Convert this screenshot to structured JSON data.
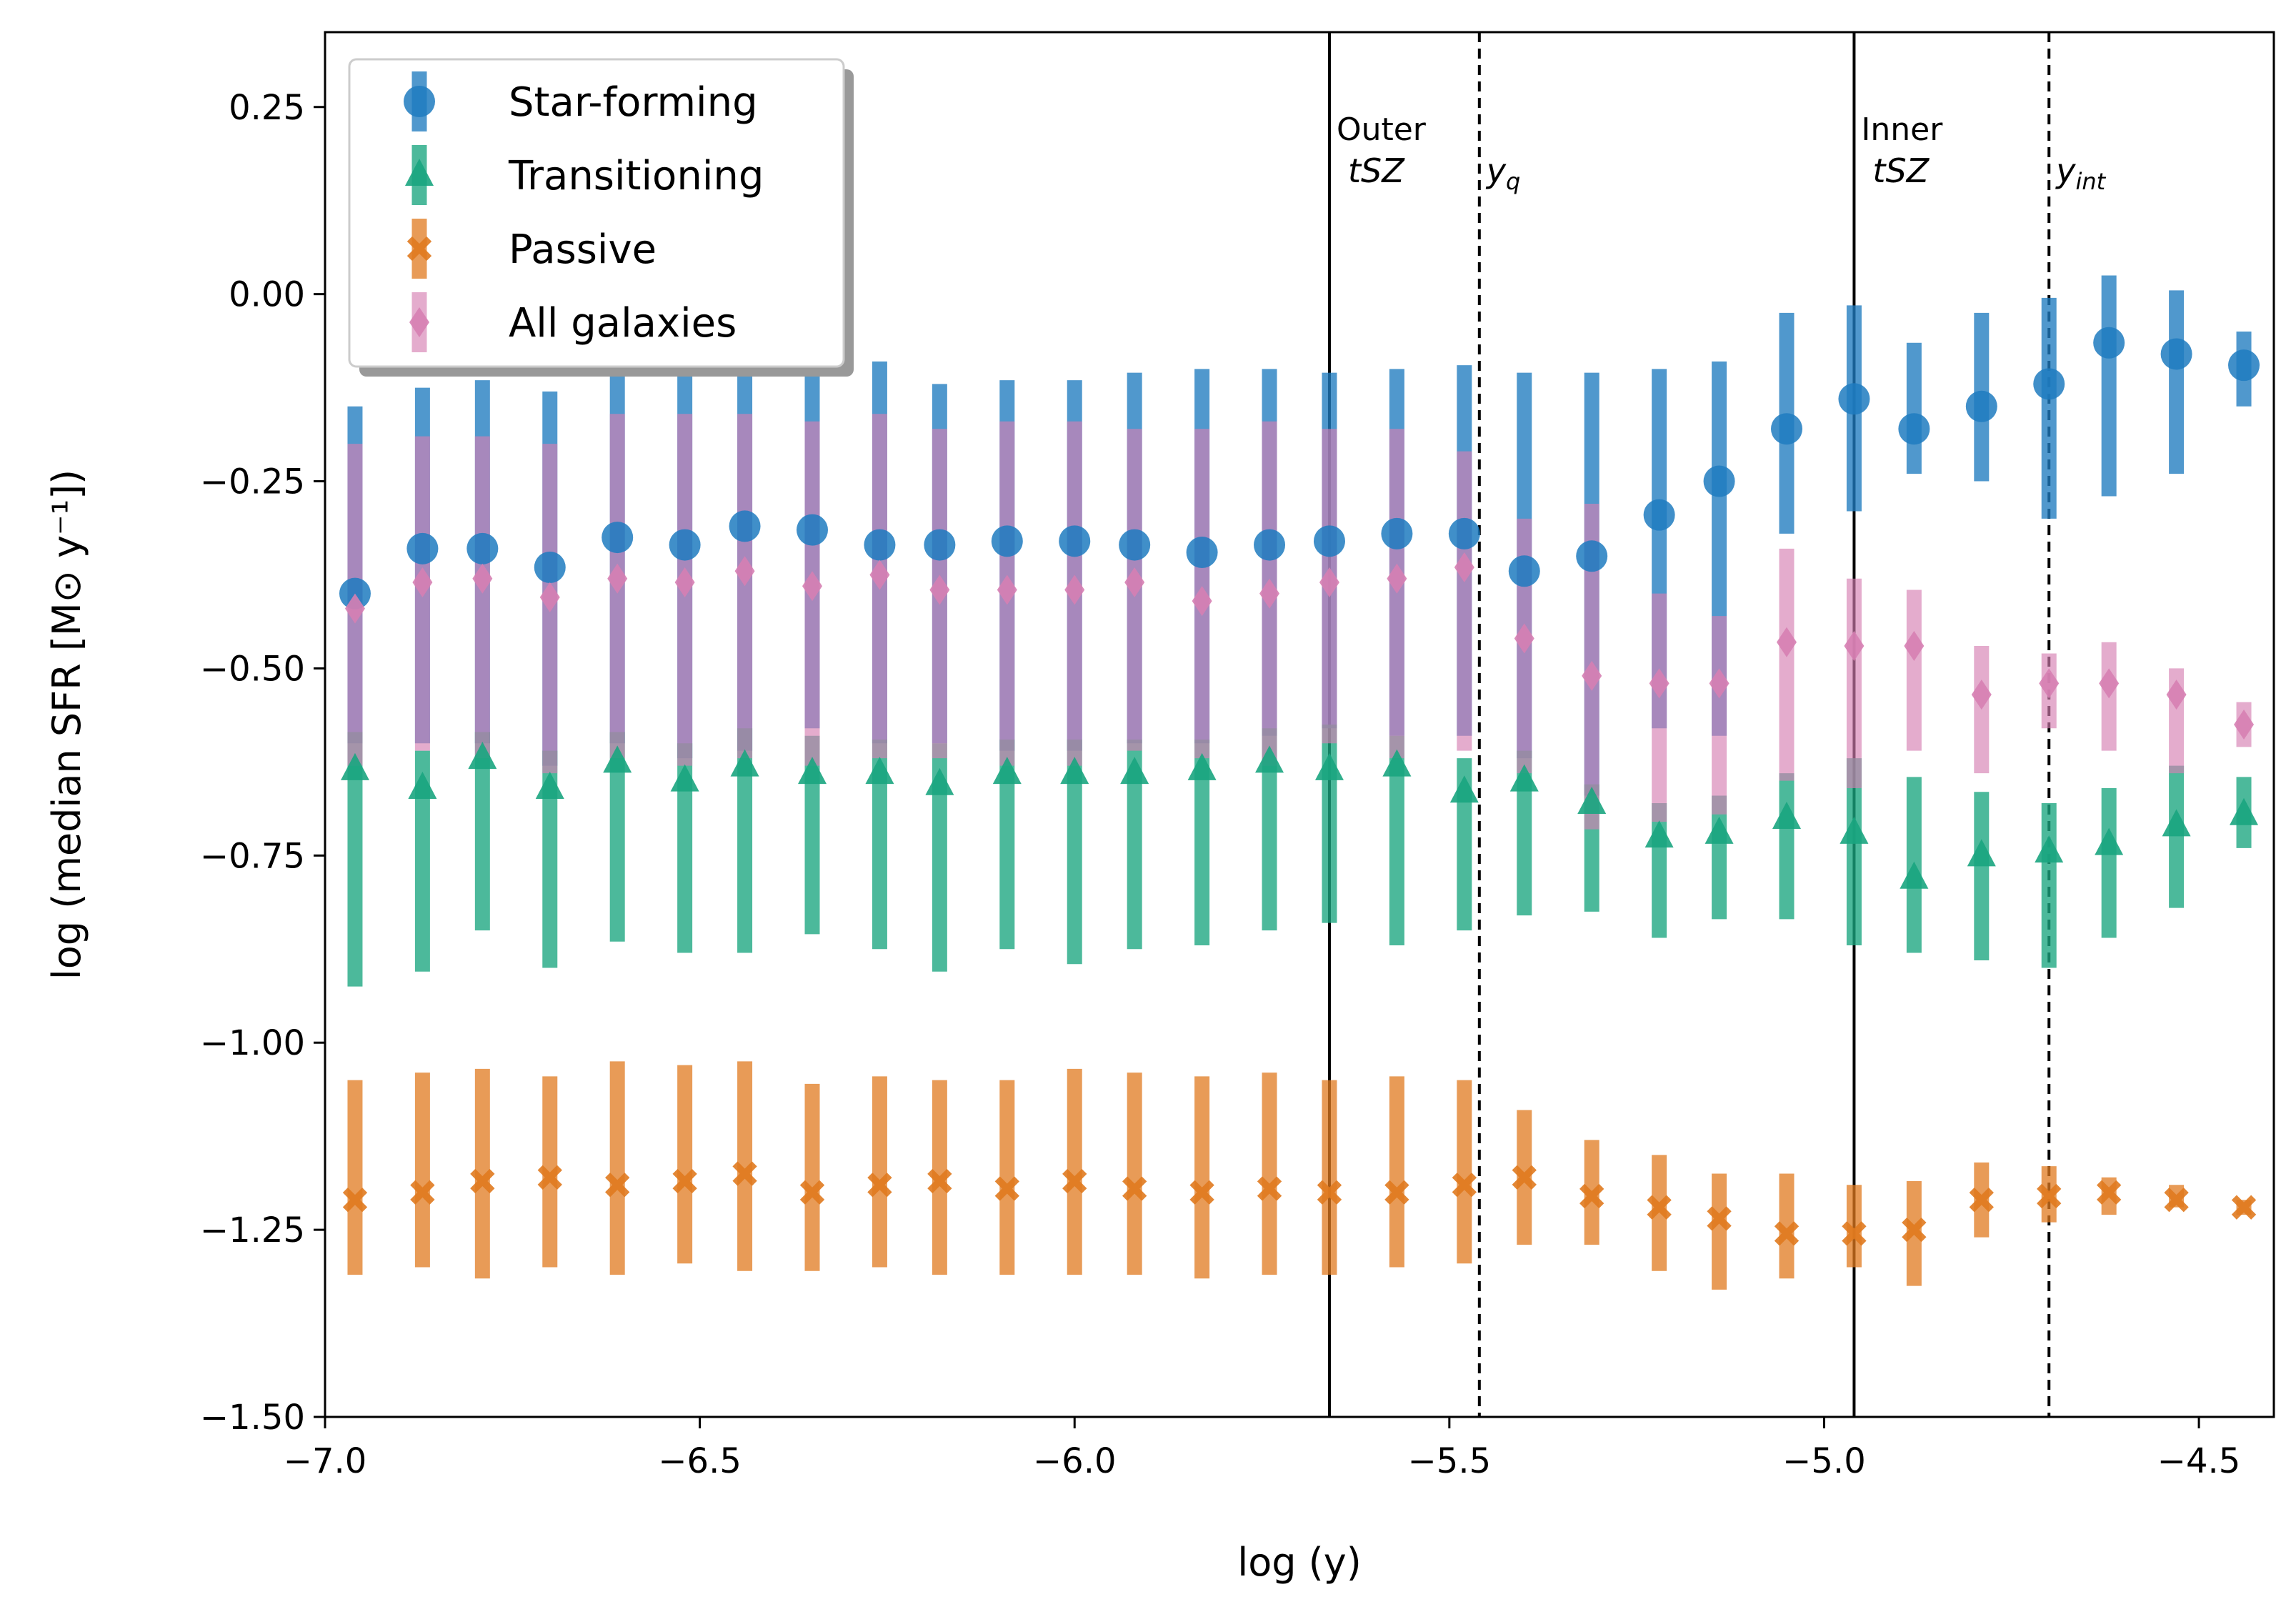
{
  "chart_data": {
    "type": "scatter",
    "title": "",
    "xlabel": "log (y)",
    "ylabel": "log (median SFR [M⊙ y⁻¹])",
    "xlim": [
      -7.0,
      -4.4
    ],
    "ylim": [
      -1.5,
      0.35
    ],
    "x_ticks": [
      -7.0,
      -6.5,
      -6.0,
      -5.5,
      -5.0,
      -4.5
    ],
    "x_tick_labels": [
      "−7.0",
      "−6.5",
      "−6.0",
      "−5.5",
      "−5.0",
      "−4.5"
    ],
    "y_ticks": [
      0.25,
      0.0,
      -0.25,
      -0.5,
      -0.75,
      -1.0,
      -1.25,
      -1.5
    ],
    "y_tick_labels": [
      "0.25",
      "0.00",
      "−0.25",
      "−0.50",
      "−0.75",
      "−1.00",
      "−1.25",
      "−1.50"
    ],
    "legend_position": "top-left",
    "x": [
      -6.96,
      -6.87,
      -6.79,
      -6.7,
      -6.61,
      -6.52,
      -6.44,
      -6.35,
      -6.26,
      -6.18,
      -6.09,
      -6.0,
      -5.92,
      -5.83,
      -5.74,
      -5.66,
      -5.57,
      -5.48,
      -5.4,
      -5.31,
      -5.22,
      -5.14,
      -5.05,
      -4.96,
      -4.88,
      -4.79,
      -4.7,
      -4.62,
      -4.53,
      -4.44
    ],
    "series": [
      {
        "name": "Star-forming",
        "marker": "circle",
        "color": "#1f7bbf",
        "values": [
          -0.4,
          -0.34,
          -0.34,
          -0.365,
          -0.325,
          -0.335,
          -0.31,
          -0.315,
          -0.335,
          -0.335,
          -0.33,
          -0.33,
          -0.335,
          -0.345,
          -0.335,
          -0.33,
          -0.32,
          -0.32,
          -0.37,
          -0.35,
          -0.295,
          -0.25,
          -0.18,
          -0.14,
          -0.18,
          -0.15,
          -0.12,
          -0.065,
          -0.08,
          -0.095
        ],
        "err_low": [
          -0.6,
          -0.6,
          -0.6,
          -0.63,
          -0.6,
          -0.62,
          -0.61,
          -0.58,
          -0.6,
          -0.6,
          -0.61,
          -0.61,
          -0.6,
          -0.6,
          -0.59,
          -0.58,
          -0.59,
          -0.59,
          -0.62,
          -0.67,
          -0.58,
          -0.59,
          -0.32,
          -0.29,
          -0.24,
          -0.25,
          -0.3,
          -0.27,
          -0.24,
          -0.15
        ],
        "err_high": [
          -0.15,
          -0.125,
          -0.115,
          -0.13,
          -0.09,
          -0.09,
          -0.09,
          -0.09,
          -0.09,
          -0.12,
          -0.115,
          -0.115,
          -0.105,
          -0.1,
          -0.1,
          -0.105,
          -0.1,
          -0.095,
          -0.105,
          -0.105,
          -0.1,
          -0.09,
          -0.025,
          -0.015,
          -0.065,
          -0.025,
          -0.005,
          0.025,
          0.005,
          -0.05
        ]
      },
      {
        "name": "Transitioning",
        "marker": "triangle",
        "color": "#1aa57f",
        "values": [
          -0.635,
          -0.66,
          -0.62,
          -0.66,
          -0.625,
          -0.65,
          -0.63,
          -0.64,
          -0.64,
          -0.655,
          -0.64,
          -0.64,
          -0.64,
          -0.635,
          -0.625,
          -0.635,
          -0.63,
          -0.665,
          -0.65,
          -0.68,
          -0.725,
          -0.72,
          -0.7,
          -0.72,
          -0.78,
          -0.75,
          -0.745,
          -0.735,
          -0.71,
          -0.695
        ],
        "err_low": [
          -0.925,
          -0.905,
          -0.85,
          -0.9,
          -0.865,
          -0.88,
          -0.88,
          -0.855,
          -0.875,
          -0.905,
          -0.875,
          -0.895,
          -0.875,
          -0.87,
          -0.85,
          -0.84,
          -0.87,
          -0.85,
          -0.83,
          -0.825,
          -0.86,
          -0.835,
          -0.835,
          -0.87,
          -0.88,
          -0.89,
          -0.9,
          -0.86,
          -0.82,
          -0.74
        ],
        "err_high": [
          -0.585,
          -0.61,
          -0.585,
          -0.61,
          -0.585,
          -0.6,
          -0.58,
          -0.59,
          -0.595,
          -0.6,
          -0.595,
          -0.595,
          -0.595,
          -0.595,
          -0.58,
          -0.575,
          -0.59,
          -0.62,
          -0.61,
          -0.655,
          -0.68,
          -0.67,
          -0.64,
          -0.62,
          -0.645,
          -0.665,
          -0.68,
          -0.66,
          -0.63,
          -0.645
        ]
      },
      {
        "name": "Passive",
        "marker": "x",
        "color": "#e07a1f",
        "values": [
          -1.21,
          -1.2,
          -1.185,
          -1.18,
          -1.19,
          -1.185,
          -1.175,
          -1.2,
          -1.19,
          -1.185,
          -1.195,
          -1.185,
          -1.195,
          -1.2,
          -1.195,
          -1.2,
          -1.2,
          -1.19,
          -1.18,
          -1.205,
          -1.22,
          -1.235,
          -1.255,
          -1.255,
          -1.25,
          -1.21,
          -1.205,
          -1.2,
          -1.21,
          -1.22
        ],
        "err_low": [
          -1.31,
          -1.3,
          -1.315,
          -1.3,
          -1.31,
          -1.295,
          -1.305,
          -1.305,
          -1.3,
          -1.31,
          -1.31,
          -1.31,
          -1.31,
          -1.315,
          -1.31,
          -1.31,
          -1.3,
          -1.295,
          -1.27,
          -1.27,
          -1.305,
          -1.33,
          -1.315,
          -1.3,
          -1.325,
          -1.26,
          -1.24,
          -1.23,
          -1.22,
          -1.23
        ],
        "err_high": [
          -1.05,
          -1.04,
          -1.035,
          -1.045,
          -1.025,
          -1.03,
          -1.025,
          -1.055,
          -1.045,
          -1.05,
          -1.05,
          -1.035,
          -1.04,
          -1.045,
          -1.04,
          -1.05,
          -1.045,
          -1.05,
          -1.09,
          -1.13,
          -1.15,
          -1.175,
          -1.175,
          -1.19,
          -1.185,
          -1.16,
          -1.165,
          -1.18,
          -1.19,
          -1.21
        ]
      },
      {
        "name": "All galaxies",
        "marker": "diamond",
        "color": "#d67fb2",
        "values": [
          -0.42,
          -0.385,
          -0.38,
          -0.405,
          -0.38,
          -0.385,
          -0.37,
          -0.39,
          -0.375,
          -0.395,
          -0.395,
          -0.395,
          -0.385,
          -0.41,
          -0.4,
          -0.385,
          -0.38,
          -0.365,
          -0.46,
          -0.51,
          -0.52,
          -0.52,
          -0.465,
          -0.47,
          -0.47,
          -0.535,
          -0.52,
          -0.52,
          -0.535,
          -0.575
        ],
        "err_low": [
          -0.63,
          -0.61,
          -0.62,
          -0.64,
          -0.62,
          -0.63,
          -0.62,
          -0.63,
          -0.62,
          -0.62,
          -0.63,
          -0.63,
          -0.61,
          -0.62,
          -0.63,
          -0.6,
          -0.62,
          -0.61,
          -0.64,
          -0.715,
          -0.705,
          -0.695,
          -0.65,
          -0.66,
          -0.61,
          -0.64,
          -0.58,
          -0.61,
          -0.64,
          -0.605
        ],
        "err_high": [
          -0.2,
          -0.19,
          -0.19,
          -0.2,
          -0.16,
          -0.16,
          -0.16,
          -0.17,
          -0.16,
          -0.18,
          -0.17,
          -0.17,
          -0.18,
          -0.18,
          -0.17,
          -0.18,
          -0.18,
          -0.21,
          -0.3,
          -0.28,
          -0.4,
          -0.43,
          -0.34,
          -0.38,
          -0.395,
          -0.47,
          -0.48,
          -0.465,
          -0.5,
          -0.545
        ]
      }
    ],
    "vlines": [
      {
        "x": -5.66,
        "style": "solid",
        "label_top": "Outer",
        "label_bottom": "tSZ"
      },
      {
        "x": -5.46,
        "style": "dashed",
        "label_base": "y",
        "label_sub": "q"
      },
      {
        "x": -4.96,
        "style": "solid",
        "label_top": "Inner",
        "label_bottom": "tSZ"
      },
      {
        "x": -4.7,
        "style": "dashed",
        "label_base": "y",
        "label_sub": "int"
      }
    ]
  }
}
